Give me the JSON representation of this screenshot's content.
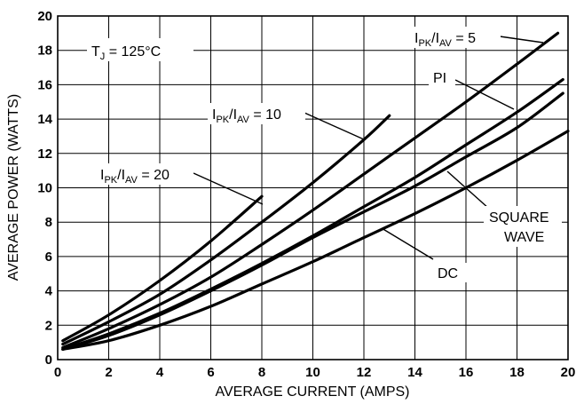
{
  "chart_data": {
    "type": "line",
    "title": "",
    "xlabel": "AVERAGE CURRENT (AMPS)",
    "ylabel": "AVERAGE POWER (WATTS)",
    "xlim": [
      0,
      20
    ],
    "ylim": [
      0,
      20
    ],
    "x_ticks": [
      0,
      2,
      4,
      6,
      8,
      10,
      12,
      14,
      16,
      18,
      20
    ],
    "y_ticks": [
      0,
      2,
      4,
      6,
      8,
      10,
      12,
      14,
      16,
      18,
      20
    ],
    "grid": true,
    "series": [
      {
        "name": "IPK/IAV = 20",
        "x": [
          0.2,
          2,
          4,
          6,
          8
        ],
        "y": [
          1.1,
          2.6,
          4.6,
          6.9,
          9.5
        ]
      },
      {
        "name": "IPK/IAV = 10",
        "x": [
          0.2,
          2,
          4,
          6,
          8,
          10,
          12,
          13
        ],
        "y": [
          0.9,
          2.2,
          3.8,
          5.8,
          8.0,
          10.3,
          12.8,
          14.2
        ]
      },
      {
        "name": "IPK/IAV = 5",
        "x": [
          0.2,
          2,
          4,
          6,
          8,
          10,
          12,
          14,
          16,
          18,
          19.6
        ],
        "y": [
          0.7,
          1.8,
          3.2,
          4.8,
          6.7,
          8.7,
          10.8,
          12.9,
          15.0,
          17.2,
          19.0
        ]
      },
      {
        "name": "PI",
        "x": [
          0.2,
          2,
          4,
          6,
          8,
          10,
          12,
          14,
          16,
          18,
          19.8
        ],
        "y": [
          0.6,
          1.5,
          2.7,
          4.1,
          5.6,
          7.2,
          8.9,
          10.6,
          12.5,
          14.4,
          16.3
        ]
      },
      {
        "name": "SQUARE WAVE",
        "x": [
          0.2,
          2,
          4,
          6,
          8,
          10,
          12,
          14,
          16,
          18,
          19.8
        ],
        "y": [
          0.6,
          1.4,
          2.6,
          4.0,
          5.5,
          7.1,
          8.6,
          10.1,
          11.8,
          13.5,
          15.5
        ]
      },
      {
        "name": "DC",
        "x": [
          0.2,
          2,
          4,
          6,
          8,
          10,
          12,
          14,
          16,
          18,
          20
        ],
        "y": [
          0.6,
          1.1,
          2.0,
          3.1,
          4.4,
          5.7,
          7.1,
          8.5,
          10.0,
          11.6,
          13.3
        ]
      }
    ],
    "annotations": {
      "tj": {
        "main": "T",
        "sub": "J",
        "rest": " = 125°C"
      },
      "r20": {
        "i1": "I",
        "s1": "PK",
        "mid": "/I",
        "s2": "AV",
        "rest": " = 20"
      },
      "r10": {
        "i1": "I",
        "s1": "PK",
        "mid": "/I",
        "s2": "AV",
        "rest": " = 10"
      },
      "r5": {
        "i1": "I",
        "s1": "PK",
        "mid": "/I",
        "s2": "AV",
        "rest": " = 5"
      },
      "pi": "PI",
      "square1": "SQUARE",
      "square2": "WAVE",
      "dc": "DC"
    }
  }
}
